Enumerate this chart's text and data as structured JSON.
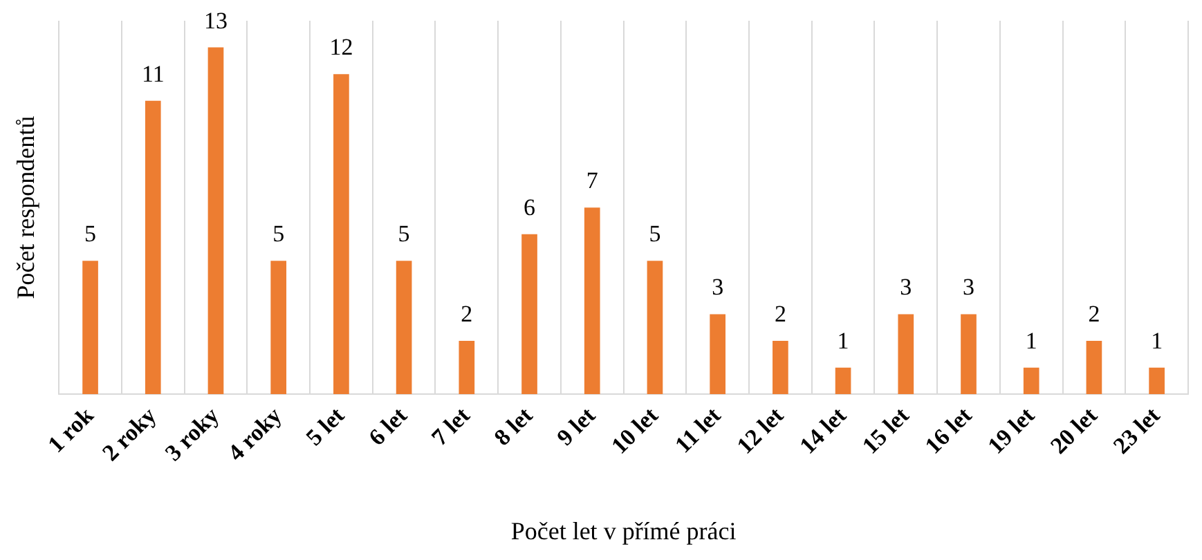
{
  "chart_data": {
    "type": "bar",
    "xlabel": "Počet let v přímé práci",
    "ylabel": "Počet respondentů",
    "categories": [
      "1 rok",
      "2 roky",
      "3 roky",
      "4 roky",
      "5 let",
      "6 let",
      "7 let",
      "8 let",
      "9 let",
      "10 let",
      "11 let",
      "12 let",
      "14 let",
      "15 let",
      "16 let",
      "19 let",
      "20 let",
      "23 let"
    ],
    "values": [
      5,
      11,
      13,
      5,
      12,
      5,
      2,
      6,
      7,
      5,
      3,
      2,
      1,
      3,
      3,
      1,
      2,
      1
    ],
    "color": "#ed7d31",
    "data_labels": true,
    "grid": "x",
    "legend": false
  }
}
